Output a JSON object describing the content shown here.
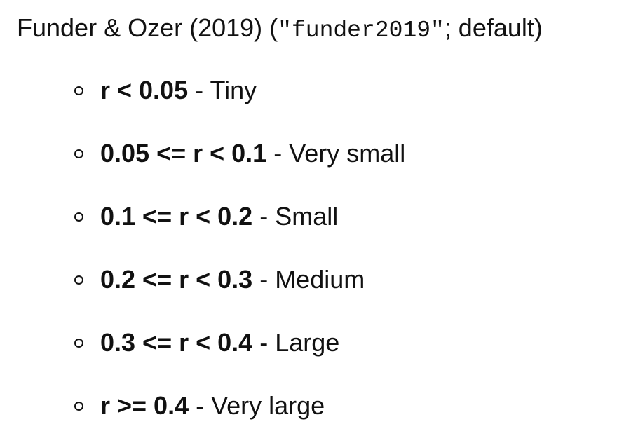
{
  "heading": {
    "prefix": "Funder & Ozer (2019) (",
    "code": "\"funder2019\"",
    "suffix": "; default)"
  },
  "rules": [
    {
      "range": "r < 0.05",
      "separator": " - ",
      "label": "Tiny"
    },
    {
      "range": "0.05 <= r < 0.1",
      "separator": " - ",
      "label": "Very small"
    },
    {
      "range": "0.1 <= r < 0.2",
      "separator": " - ",
      "label": "Small"
    },
    {
      "range": "0.2 <= r < 0.3",
      "separator": " - ",
      "label": "Medium"
    },
    {
      "range": "0.3 <= r < 0.4",
      "separator": " - ",
      "label": "Large"
    },
    {
      "range": "r >= 0.4",
      "separator": " - ",
      "label": "Very large"
    }
  ]
}
